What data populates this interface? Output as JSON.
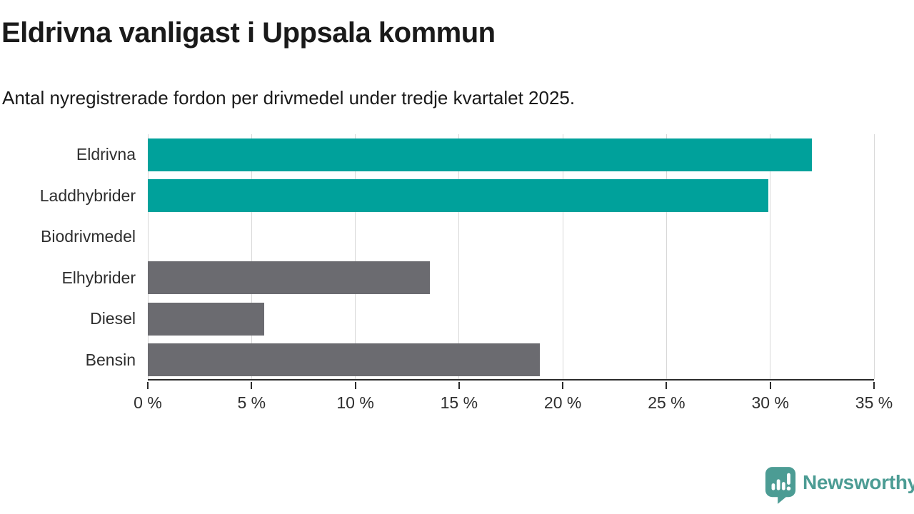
{
  "header": {
    "title": "Eldrivna vanligast i Uppsala kommun",
    "subtitle": "Antal nyregistrerade fordon per drivmedel under tredje kvartalet 2025."
  },
  "chart_data": {
    "type": "bar",
    "orientation": "horizontal",
    "title": "Eldrivna vanligast i Uppsala kommun",
    "subtitle": "Antal nyregistrerade fordon per drivmedel under tredje kvartalet 2025.",
    "categories": [
      "Eldrivna",
      "Laddhybrider",
      "Biodrivmedel",
      "Elhybrider",
      "Diesel",
      "Bensin"
    ],
    "values": [
      32.0,
      29.9,
      0.0,
      13.6,
      5.6,
      18.9
    ],
    "unit": "%",
    "bar_colors": [
      "#00a19b",
      "#00a19b",
      "#6b6b70",
      "#6b6b70",
      "#6b6b70",
      "#6b6b70"
    ],
    "highlight_color": "#00a19b",
    "default_color": "#6b6b70",
    "xlim": [
      0,
      35
    ],
    "x_tick_step": 5,
    "x_tick_labels": [
      "0 %",
      "5 %",
      "10 %",
      "15 %",
      "20 %",
      "25 %",
      "30 %",
      "35 %"
    ],
    "grid": true,
    "gridline_color": "#d8d8d8",
    "axis_color": "#2b2b2b",
    "legend": "none"
  },
  "footer": {
    "brand": "Newsworthy",
    "brand_color": "#4c9c94",
    "logo_icon": "speech-bubble-bar-chart-icon"
  }
}
